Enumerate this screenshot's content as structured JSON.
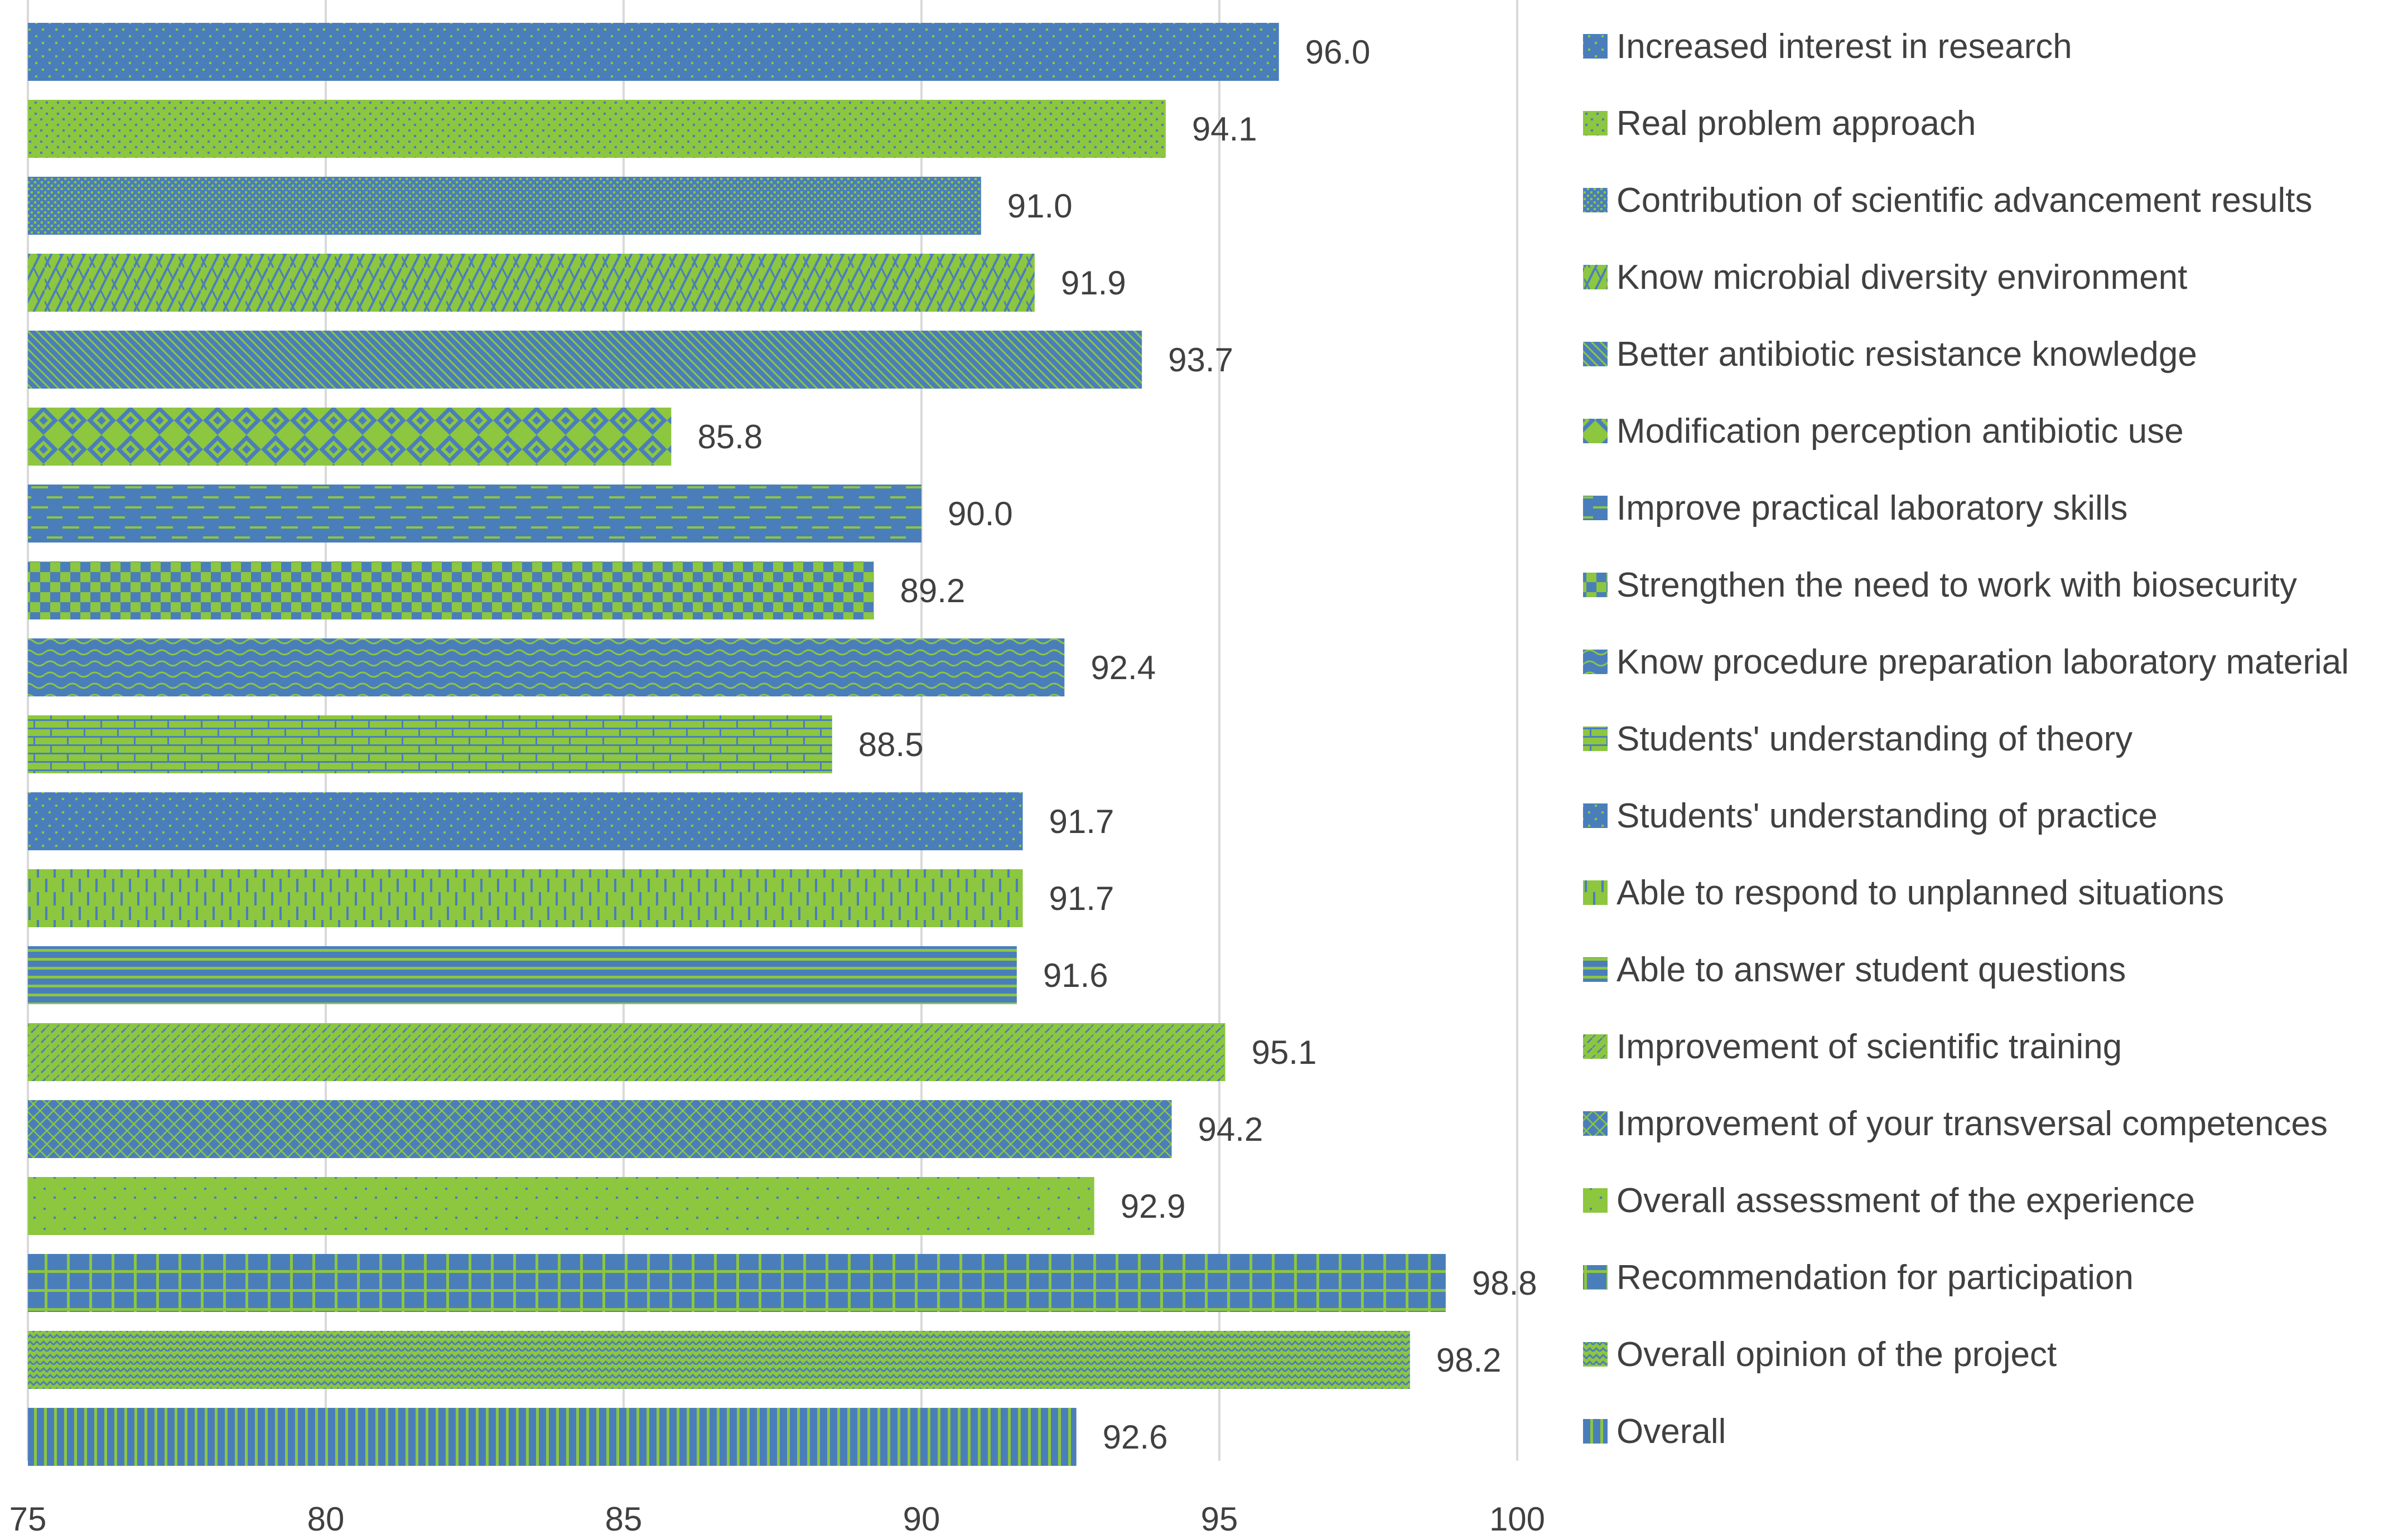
{
  "chart_data": {
    "type": "bar",
    "orientation": "horizontal",
    "title": "",
    "xlabel": "",
    "ylabel": "",
    "xlim": [
      75,
      100
    ],
    "xticks": [
      75,
      80,
      85,
      90,
      95,
      100
    ],
    "grid": "vertical",
    "legend_position": "right",
    "colors": {
      "blue": "#4a7ebb",
      "green": "#8dc63f",
      "grid": "#d9d9d9",
      "text": "#404040"
    },
    "series": [
      {
        "name": "Increased interest in research",
        "value": 96.0,
        "label": "96.0",
        "color": "blue",
        "pattern": "dots-fine"
      },
      {
        "name": "Real problem approach",
        "value": 94.1,
        "label": "94.1",
        "color": "green",
        "pattern": "dots-medium"
      },
      {
        "name": "Contribution of scientific advancement results",
        "value": 91.0,
        "label": "91.0",
        "color": "blue",
        "pattern": "dots-dense"
      },
      {
        "name": "Know microbial diversity environment",
        "value": 91.9,
        "label": "91.9",
        "color": "green",
        "pattern": "weave"
      },
      {
        "name": "Better antibiotic resistance knowledge",
        "value": 93.7,
        "label": "93.7",
        "color": "blue",
        "pattern": "diagonal-stripes"
      },
      {
        "name": "Modification perception antibiotic use",
        "value": 85.8,
        "label": "85.8",
        "color": "green",
        "pattern": "diamonds"
      },
      {
        "name": "Improve practical laboratory skills",
        "value": 90.0,
        "label": "90.0",
        "color": "blue",
        "pattern": "dashed-horizontal"
      },
      {
        "name": "Strengthen the need to work with biosecurity",
        "value": 89.2,
        "label": "89.2",
        "color": "green",
        "pattern": "checkerboard"
      },
      {
        "name": "Know procedure preparation laboratory material",
        "value": 92.4,
        "label": "92.4",
        "color": "blue",
        "pattern": "waves"
      },
      {
        "name": "Students' understanding of theory",
        "value": 88.5,
        "label": "88.5",
        "color": "green",
        "pattern": "bricks"
      },
      {
        "name": "Students' understanding of practice",
        "value": 91.7,
        "label": "91.7",
        "color": "blue",
        "pattern": "dots-fine"
      },
      {
        "name": "Able to respond to unplanned situations",
        "value": 91.7,
        "label": "91.7",
        "color": "green",
        "pattern": "dashed-vertical"
      },
      {
        "name": "Able to answer student questions",
        "value": 91.6,
        "label": "91.6",
        "color": "blue",
        "pattern": "horizontal-stripes"
      },
      {
        "name": "Improvement of scientific training",
        "value": 95.1,
        "label": "95.1",
        "color": "green",
        "pattern": "diagonal-dashes"
      },
      {
        "name": "Improvement of your transversal competences",
        "value": 94.2,
        "label": "94.2",
        "color": "blue",
        "pattern": "crosshatch"
      },
      {
        "name": "Overall assessment of the experience",
        "value": 92.9,
        "label": "92.9",
        "color": "green",
        "pattern": "dots-sparse"
      },
      {
        "name": "Recommendation for participation",
        "value": 98.8,
        "label": "98.8",
        "color": "blue",
        "pattern": "grid"
      },
      {
        "name": "Overall opinion of the project",
        "value": 98.2,
        "label": "98.2",
        "color": "green",
        "pattern": "zigzag"
      },
      {
        "name": "Overall",
        "value": 92.6,
        "label": "92.6",
        "color": "blue",
        "pattern": "vertical-stripes"
      }
    ]
  }
}
